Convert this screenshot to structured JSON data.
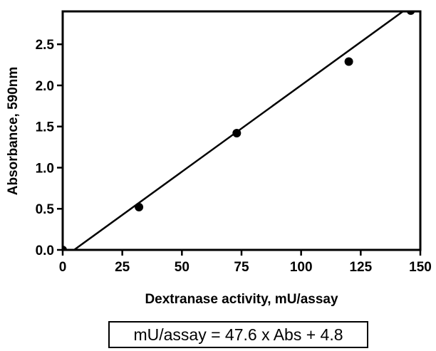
{
  "chart_data": {
    "type": "scatter",
    "title": "",
    "xlabel": "Dextranase activity, mU/assay",
    "ylabel": "Absorbance, 590nm",
    "xlim": [
      0,
      150
    ],
    "ylim": [
      0,
      2.9
    ],
    "x_ticks": [
      "0",
      "25",
      "50",
      "75",
      "100",
      "125",
      "150"
    ],
    "y_ticks": [
      "0.0",
      "0.5",
      "1.0",
      "1.5",
      "2.0",
      "2.5"
    ],
    "grid": false,
    "legend": "none",
    "series": [
      {
        "type": "scatter",
        "x": [
          0,
          32,
          73,
          120,
          146
        ],
        "y": [
          0.0,
          0.52,
          1.42,
          2.29,
          2.91
        ]
      }
    ],
    "fit_line": {
      "x": [
        2.4,
        148.9
      ],
      "y": [
        -0.05,
        3.03
      ]
    },
    "equation": "mU/assay = 47.6 x Abs + 4.8",
    "colors": {
      "marker": "#000000",
      "line": "#000000"
    }
  }
}
